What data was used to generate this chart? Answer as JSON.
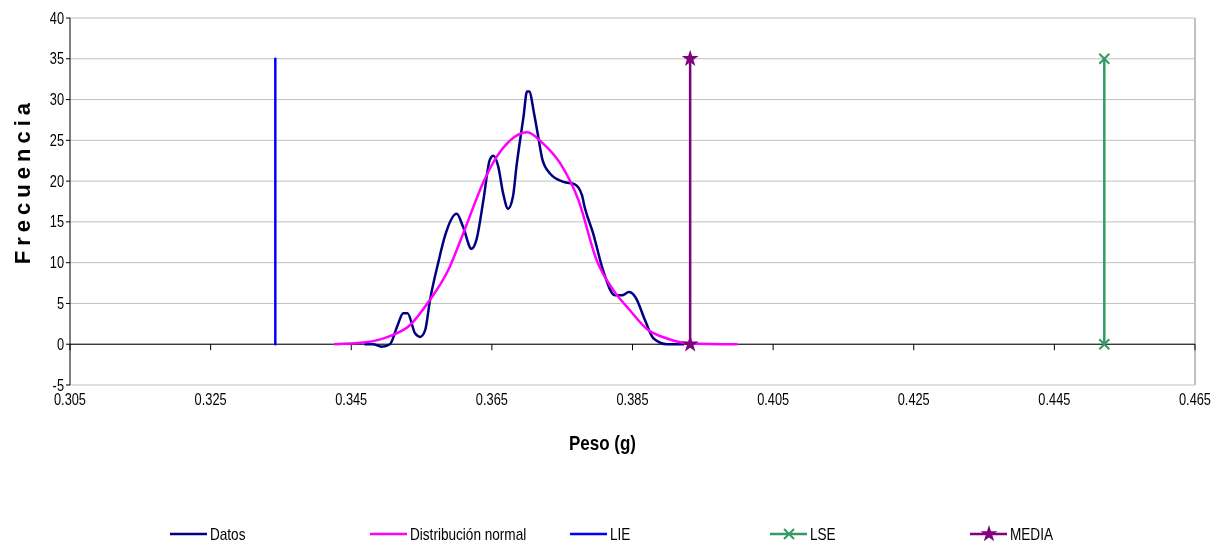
{
  "chart_data": {
    "type": "line",
    "xlabel": "Peso (g)",
    "ylabel": "Frecuencia",
    "xlim": [
      0.305,
      0.465
    ],
    "ylim": [
      -5,
      40
    ],
    "xticks": [
      0.305,
      0.325,
      0.345,
      0.365,
      0.385,
      0.405,
      0.425,
      0.445,
      0.465
    ],
    "yticks": [
      -5,
      0,
      5,
      10,
      15,
      20,
      25,
      30,
      35,
      40
    ],
    "grid": "y",
    "legend": "bottom",
    "line_style": "solid",
    "series": [
      {
        "name": "Datos",
        "color": "#000080",
        "marker": "none",
        "x": [
          0.347,
          0.3481,
          0.3493,
          0.3505,
          0.3515,
          0.3524,
          0.353,
          0.3541,
          0.3548,
          0.3555,
          0.3562,
          0.3574,
          0.3583,
          0.36,
          0.3609,
          0.3621,
          0.3628,
          0.3638,
          0.3647,
          0.3652,
          0.3659,
          0.3666,
          0.3673,
          0.368,
          0.3685,
          0.3695,
          0.37,
          0.3703,
          0.371,
          0.3716,
          0.3722,
          0.3733,
          0.3752,
          0.3768,
          0.3778,
          0.3782,
          0.3794,
          0.3808,
          0.3825,
          0.3835,
          0.3845,
          0.3854,
          0.3868,
          0.388,
          0.3899,
          0.3922
        ],
        "values": [
          0,
          0,
          -0.3,
          0,
          2.1,
          3.8,
          3.8,
          1.3,
          0.9,
          1.7,
          5.4,
          10.1,
          13.2,
          16,
          14.4,
          11.7,
          12.8,
          17.7,
          22.6,
          23.1,
          21.8,
          18.5,
          16.6,
          18.1,
          21.8,
          27.9,
          31,
          31,
          28.3,
          25.4,
          22.6,
          20.9,
          19.9,
          19.6,
          18.3,
          16.8,
          13.6,
          9.1,
          6,
          6,
          6.4,
          5.8,
          2.9,
          0.7,
          0,
          0
        ]
      },
      {
        "name": "Distribución normal",
        "color": "#ff00ff",
        "marker": "none",
        "x": [
          0.3427,
          0.3467,
          0.3505,
          0.3533,
          0.356,
          0.3588,
          0.3612,
          0.3638,
          0.3657,
          0.3676,
          0.37,
          0.3723,
          0.3747,
          0.3773,
          0.3799,
          0.3823,
          0.3846,
          0.387,
          0.3899,
          0.3932,
          0.3998
        ],
        "values": [
          0,
          0.2,
          1,
          2.3,
          5.2,
          9.1,
          14.2,
          19.9,
          23,
          25,
          26,
          24.6,
          22.2,
          17.7,
          10.3,
          6.6,
          4.2,
          1.9,
          0.7,
          0.1,
          0
        ]
      },
      {
        "name": "LIE",
        "color": "#0000ff",
        "marker": "none",
        "x": [
          0.3342,
          0.3342
        ],
        "values": [
          0,
          35
        ]
      },
      {
        "name": "LSE",
        "color": "#339966",
        "marker": "cross",
        "x": [
          0.4521,
          0.4521
        ],
        "values": [
          0,
          35
        ]
      },
      {
        "name": "MEDIA",
        "color": "#800080",
        "marker": "star",
        "x": [
          0.3932,
          0.3932
        ],
        "values": [
          0,
          35
        ]
      }
    ]
  }
}
